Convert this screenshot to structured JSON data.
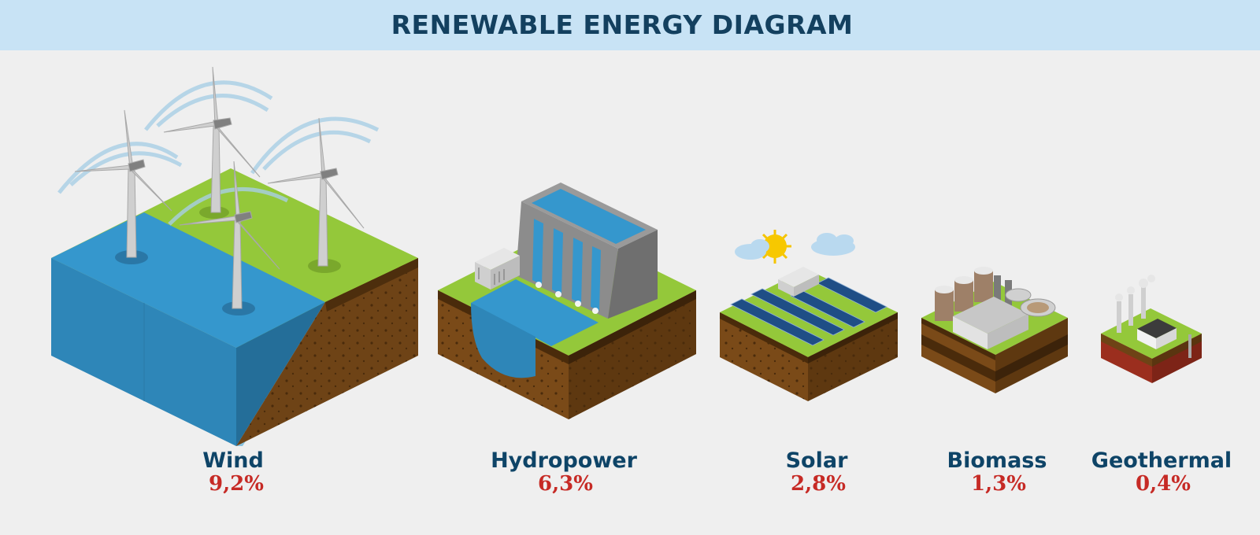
{
  "title": "RENEWABLE ENERGY DIAGRAM",
  "sources": [
    {
      "name": "Wind",
      "share": "9,2%",
      "icon": "wind-farm-icon"
    },
    {
      "name": "Hydropower",
      "share": "6,3%",
      "icon": "hydro-dam-icon"
    },
    {
      "name": "Solar",
      "share": "2,8%",
      "icon": "solar-farm-icon"
    },
    {
      "name": "Biomass",
      "share": "1,3%",
      "icon": "biomass-plant-icon"
    },
    {
      "name": "Geothermal",
      "share": "0,4%",
      "icon": "geothermal-plant-icon"
    }
  ],
  "colors": {
    "header_bg": "#c8e3f5",
    "title": "#13405f",
    "label": "#0e4467",
    "percent": "#c62a25",
    "grass": "#94c83a",
    "soil": "#6e4316",
    "water": "#3597cd"
  }
}
